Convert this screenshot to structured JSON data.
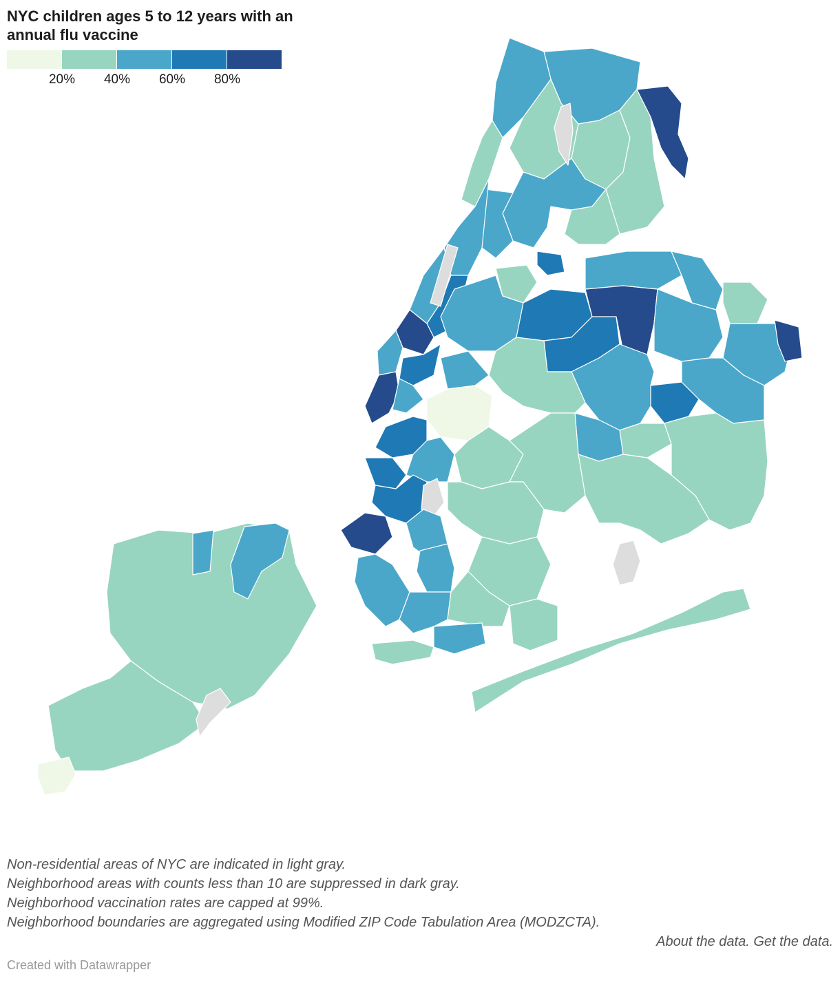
{
  "header": {
    "title": "NYC children ages 5 to 12 years with an annual flu vaccine"
  },
  "legend": {
    "colors": [
      "#eff8e7",
      "#98d5c0",
      "#4aa7ca",
      "#1f79b5",
      "#254b8c"
    ],
    "ticks": [
      "20%",
      "40%",
      "60%",
      "80%"
    ]
  },
  "map": {
    "no_data_color": "#dddddd",
    "boundary_color": "#ffffff"
  },
  "notes": {
    "line1": "Non-residential areas of NYC are indicated in light gray.",
    "line2": "Neighborhood areas with counts less than 10 are suppressed in dark gray.",
    "line3": "Neighborhood vaccination rates are capped at 99%.",
    "line4": "Neighborhood boundaries are aggregated using Modified ZIP Code Tabulation Area (MODZCTA).",
    "about_link": "About the data.",
    "get_link": "Get the data."
  },
  "footer": {
    "credit": "Created with Datawrapper"
  }
}
